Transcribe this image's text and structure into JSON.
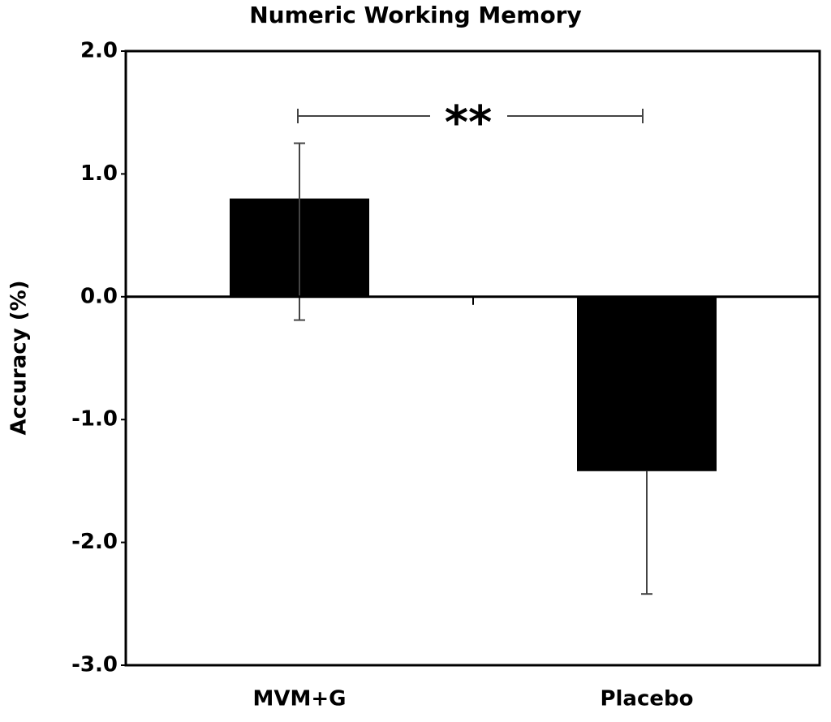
{
  "chart_data": {
    "type": "bar",
    "title": "Numeric Working Memory",
    "y_label": "Accuracy (%)",
    "categories": [
      "MVM+G",
      "Placebo"
    ],
    "values": [
      0.8,
      -1.42
    ],
    "color": "#000000",
    "error_high": [
      1.25,
      null
    ],
    "error_low": [
      -0.19,
      -2.42
    ],
    "ylim": [
      -3,
      2
    ],
    "yticks": [
      {
        "value": -3,
        "label": "-3.0"
      },
      {
        "value": -2,
        "label": "-2.0"
      },
      {
        "value": -1,
        "label": "-1.0"
      },
      {
        "value": 0,
        "label": "0.0"
      },
      {
        "value": 1,
        "label": "1.0"
      },
      {
        "value": 2,
        "label": "2.0"
      }
    ],
    "grid": false,
    "annotation": "**"
  }
}
